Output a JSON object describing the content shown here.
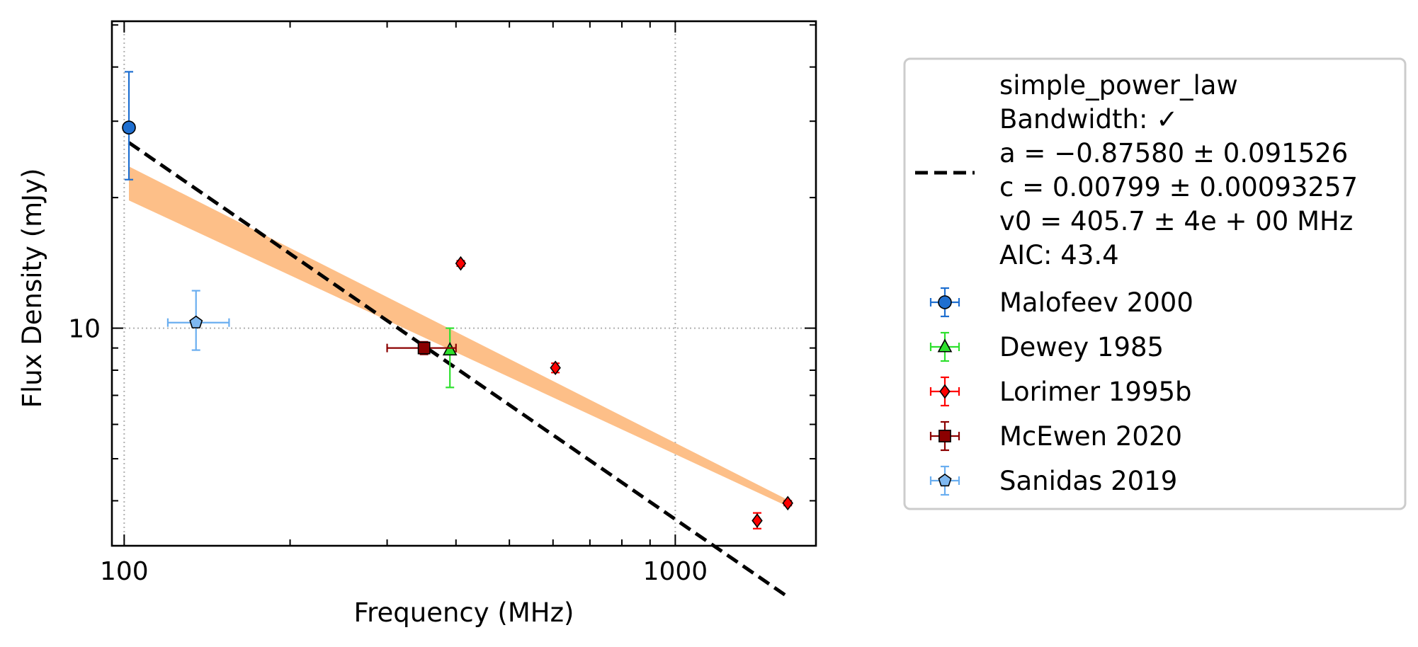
{
  "chart_data": {
    "type": "scatter",
    "title": "",
    "xlabel": "Frequency (MHz)",
    "ylabel": "Flux Density (mJy)",
    "x_scale": "log",
    "y_scale": "log",
    "xlim": [
      95,
      1800
    ],
    "ylim": [
      3.15,
      51
    ],
    "x_tick_labels": [
      "100",
      "1000"
    ],
    "y_tick_labels": [
      "10"
    ],
    "grid": "dotted lines at major ticks",
    "legend_position": "outside right",
    "fit": {
      "model_name": "simple_power_law",
      "legend_lines": [
        "simple_power_law",
        "Bandwidth: ✓",
        "a = −0.87580 ± 0.091526",
        "c = 0.00799 ± 0.00093257",
        "v0 = 405.7 ± 4e + 00 MHz",
        "AIC: 43.4"
      ],
      "a": -0.8758,
      "c": 0.00799,
      "v0": 405.7,
      "x_range": [
        102,
        1600
      ],
      "line_style": "black dashed",
      "band_color": "#fdbf88",
      "band_upper": [
        [
          102,
          23.6
        ],
        [
          1600,
          4.02
        ]
      ],
      "band_lower": [
        [
          102,
          19.7
        ],
        [
          1600,
          3.88
        ]
      ]
    },
    "series": [
      {
        "name": "Malofeev 2000",
        "marker": "circle",
        "color": "#1f6fd0",
        "errcolor": "#1f6fd0",
        "points": [
          {
            "x": 102,
            "y": 29,
            "y_err_low": 7,
            "y_err_high": 10
          }
        ]
      },
      {
        "name": "Dewey 1985",
        "marker": "triangle",
        "color": "#2ee02e",
        "errcolor": "#2ee02e",
        "points": [
          {
            "x": 390,
            "y": 8.9,
            "y_err_low": 1.6,
            "y_err_high": 1.1
          }
        ]
      },
      {
        "name": "Lorimer 1995b",
        "marker": "diamond",
        "color": "#ff0000",
        "errcolor": "#ff0000",
        "points": [
          {
            "x": 408,
            "y": 14.1,
            "y_err_low": 0.2,
            "y_err_high": 0.2
          },
          {
            "x": 606,
            "y": 8.1,
            "y_err_low": 0.2,
            "y_err_high": 0.2
          },
          {
            "x": 1408,
            "y": 3.6,
            "y_err_low": 0.15,
            "y_err_high": 0.15
          },
          {
            "x": 1600,
            "y": 3.95,
            "y_err_low": 0.05,
            "y_err_high": 0.05
          }
        ]
      },
      {
        "name": "McEwen 2020",
        "marker": "square",
        "color": "#8b0000",
        "errcolor": "#8b0000",
        "points": [
          {
            "x": 350,
            "y": 9.0,
            "x_err_low": 50,
            "x_err_high": 50,
            "y_err_low": 0.3,
            "y_err_high": 0.3
          }
        ]
      },
      {
        "name": "Sanidas 2019",
        "marker": "pentagon",
        "color": "#7fb8f0",
        "errcolor": "#6aaef0",
        "points": [
          {
            "x": 135,
            "y": 10.3,
            "x_err_low": 15,
            "x_err_high": 20,
            "y_err_low": 1.4,
            "y_err_high": 1.9
          }
        ]
      }
    ]
  }
}
